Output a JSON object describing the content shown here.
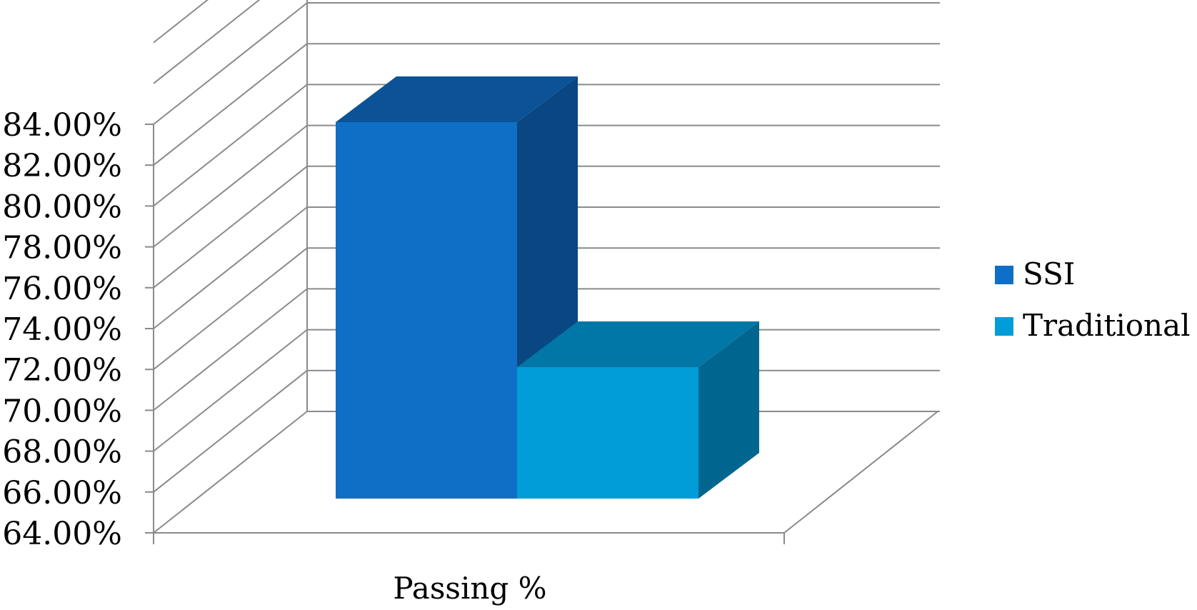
{
  "chart_data": {
    "type": "bar",
    "style": "3d-clustered-column",
    "categories": [
      "Passing %"
    ],
    "series": [
      {
        "name": "SSI",
        "values": [
          0.8376
        ],
        "color": "#0f6fc6"
      },
      {
        "name": "Traditional",
        "values": [
          0.7175
        ],
        "color": "#009dd9"
      }
    ],
    "ylim": [
      0.64,
      0.84
    ],
    "ytick_step": 0.02,
    "ytick_labels": [
      "64.00%",
      "66.00%",
      "68.00%",
      "70.00%",
      "72.00%",
      "74.00%",
      "76.00%",
      "78.00%",
      "80.00%",
      "82.00%",
      "84.00%"
    ],
    "grid": true,
    "legend_position": "right",
    "colors": {
      "ssi_front": "#0f6fc6",
      "ssi_top": "#0b5396",
      "ssi_side": "#0a4681",
      "traditional_front": "#009dd9",
      "traditional_top": "#0077a6",
      "traditional_side": "#006690",
      "gridline": "#8a8a8a"
    }
  }
}
